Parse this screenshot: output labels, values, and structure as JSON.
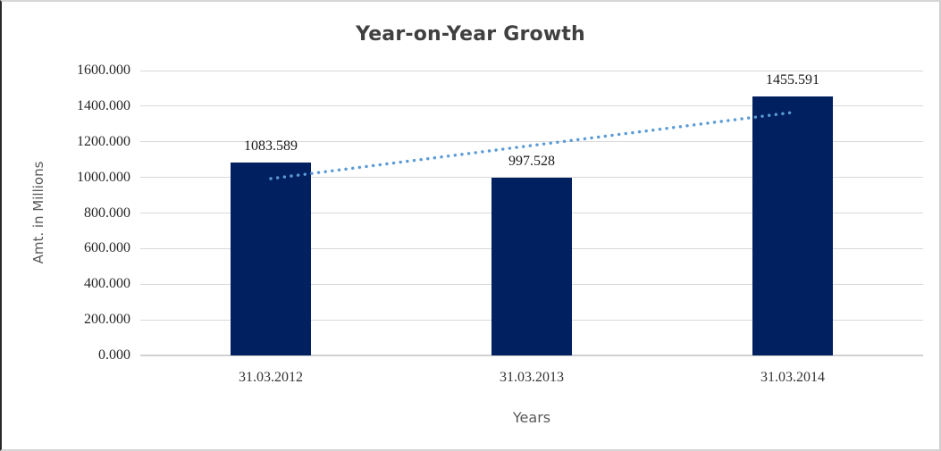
{
  "chart_data": {
    "type": "bar",
    "title": "Year-on-Year Growth",
    "xlabel": "Years",
    "ylabel": "Amt. in Millions",
    "categories": [
      "31.03.2012",
      "31.03.2013",
      "31.03.2014"
    ],
    "values": [
      1083.589,
      997.528,
      1455.591
    ],
    "data_labels": [
      "1083.589",
      "997.528",
      "1455.591"
    ],
    "y_ticks": [
      {
        "value": 0,
        "label": "0.000"
      },
      {
        "value": 200,
        "label": "200.000"
      },
      {
        "value": 400,
        "label": "400.000"
      },
      {
        "value": 600,
        "label": "600.000"
      },
      {
        "value": 800,
        "label": "800.000"
      },
      {
        "value": 1000,
        "label": "1000.000"
      },
      {
        "value": 1200,
        "label": "1200.000"
      },
      {
        "value": 1400,
        "label": "1400.000"
      },
      {
        "value": 1600,
        "label": "1600.000"
      }
    ],
    "ylim": [
      0,
      1600
    ],
    "grid": true,
    "legend": "none",
    "trendline": {
      "type": "linear",
      "style": "dotted",
      "start_value": 993,
      "end_value": 1365
    },
    "colors": {
      "bar": "#002060",
      "trendline": "#5b9bd5",
      "gridline": "#d9d9d9",
      "axis_line": "#d0d0d0",
      "title": "#404040",
      "tick_label": "#262626",
      "axis_title": "#595959"
    }
  }
}
